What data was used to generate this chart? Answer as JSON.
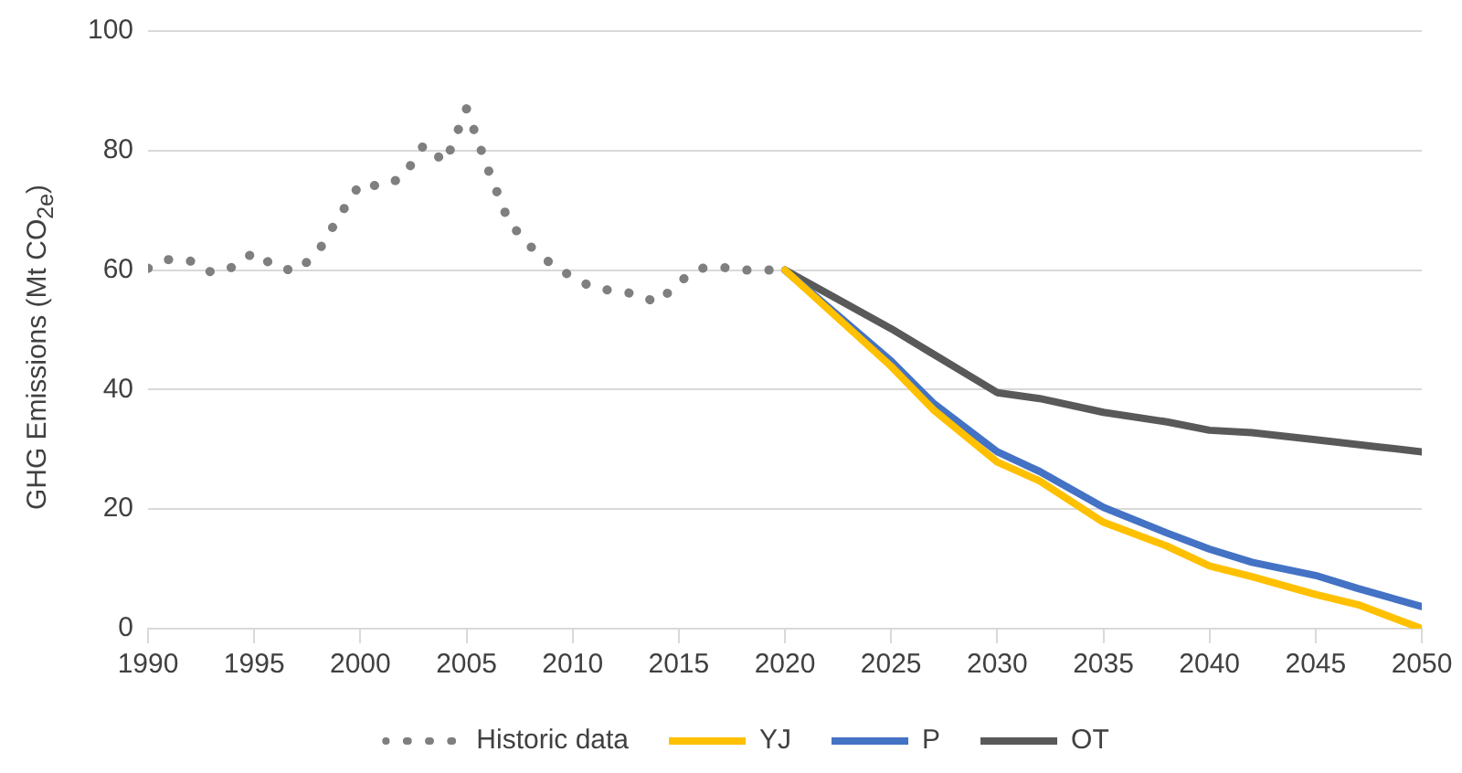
{
  "chart_data": {
    "type": "line",
    "ylabel": "GHG Emissions (Mt CO$_{2e}$)",
    "xlim": [
      1990,
      2050
    ],
    "xticks": [
      1990,
      1995,
      2000,
      2005,
      2010,
      2015,
      2020,
      2025,
      2030,
      2035,
      2040,
      2045,
      2050
    ],
    "ylim": [
      0,
      100
    ],
    "yticks": [
      0,
      20,
      40,
      60,
      80,
      100
    ],
    "grid": "y",
    "legend": "bottom",
    "marker": "none",
    "series": [
      {
        "name": "Historic data",
        "color": "#7f7f7f",
        "line_style": "dotted",
        "x": [
          1990,
          1991,
          1992,
          1993,
          1994,
          1995,
          1996,
          1997,
          1998,
          1999,
          2000,
          2001,
          2002,
          2003,
          2004,
          2005,
          2006,
          2007,
          2008,
          2009,
          2010,
          2011,
          2012,
          2013,
          2014,
          2015,
          2016,
          2017,
          2018,
          2019,
          2020
        ],
        "values": [
          60.3,
          61.8,
          61.5,
          59.6,
          60.5,
          63,
          60.5,
          59.8,
          63,
          69,
          74.5,
          74,
          75.5,
          81,
          78,
          87,
          77,
          68,
          64,
          61,
          58.8,
          57,
          56.5,
          56,
          54.5,
          58,
          60.3,
          60.5,
          60,
          60,
          60
        ]
      },
      {
        "name": "YJ",
        "color": "#ffc000",
        "line_style": "solid",
        "x": [
          2020,
          2025,
          2027,
          2030,
          2032,
          2035,
          2038,
          2040,
          2042,
          2045,
          2047,
          2050
        ],
        "values": [
          60,
          43.9,
          36.6,
          27.9,
          24.7,
          17.8,
          13.8,
          10.5,
          8.7,
          5.7,
          4,
          0
        ]
      },
      {
        "name": "P",
        "color": "#4472c4",
        "line_style": "solid",
        "x": [
          2020,
          2025,
          2027,
          2030,
          2032,
          2035,
          2038,
          2040,
          2042,
          2045,
          2047,
          2050
        ],
        "values": [
          60,
          44.8,
          37.7,
          29.6,
          26.3,
          20.3,
          16,
          13.3,
          11.1,
          8.9,
          6.7,
          3.7
        ]
      },
      {
        "name": "OT",
        "color": "#595959",
        "line_style": "solid",
        "x": [
          2020,
          2025,
          2030,
          2032,
          2035,
          2038,
          2040,
          2042,
          2045,
          2048,
          2050
        ],
        "values": [
          60,
          50.2,
          39.5,
          38.5,
          36.2,
          34.6,
          33.2,
          32.8,
          31.6,
          30.4,
          29.6
        ]
      }
    ]
  }
}
